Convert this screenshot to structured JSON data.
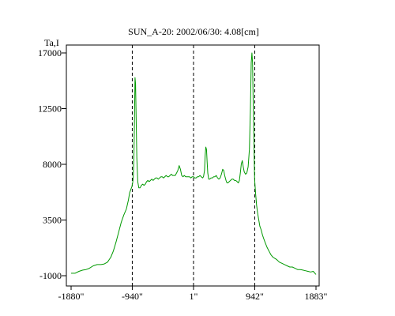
{
  "chart_data": {
    "type": "line",
    "title": "SUN_A-20: 2002/06/30: 4.08[cm]",
    "ylabel": "Ta,I",
    "xlabel": "",
    "xlim": [
      -1880,
      1883
    ],
    "ylim": [
      -1000,
      17000
    ],
    "grid": false,
    "x_ticks": [
      {
        "value": -1880,
        "label": "-1880\""
      },
      {
        "value": -940,
        "label": "-940\""
      },
      {
        "value": 1,
        "label": "1\""
      },
      {
        "value": 942,
        "label": "942\""
      },
      {
        "value": 1883,
        "label": "1883\""
      }
    ],
    "y_ticks": [
      {
        "value": 17000,
        "label": "17000"
      },
      {
        "value": 12500,
        "label": "12500"
      },
      {
        "value": 8000,
        "label": "8000"
      },
      {
        "value": 3500,
        "label": "3500"
      },
      {
        "value": -1000,
        "label": "-1000"
      }
    ],
    "reference_lines_x": [
      -940,
      1,
      942
    ],
    "series": [
      {
        "color": "#009900",
        "points": [
          [
            -1880,
            -800
          ],
          [
            -1820,
            -800
          ],
          [
            -1760,
            -650
          ],
          [
            -1700,
            -550
          ],
          [
            -1650,
            -500
          ],
          [
            -1600,
            -400
          ],
          [
            -1540,
            -200
          ],
          [
            -1480,
            -100
          ],
          [
            -1420,
            -100
          ],
          [
            -1370,
            -50
          ],
          [
            -1320,
            100
          ],
          [
            -1270,
            500
          ],
          [
            -1230,
            1000
          ],
          [
            -1190,
            1700
          ],
          [
            -1150,
            2500
          ],
          [
            -1110,
            3300
          ],
          [
            -1070,
            3900
          ],
          [
            -1030,
            4400
          ],
          [
            -1000,
            5100
          ],
          [
            -980,
            5700
          ],
          [
            -960,
            6000
          ],
          [
            -945,
            6200
          ],
          [
            -935,
            6500
          ],
          [
            -925,
            6900
          ],
          [
            -915,
            8500
          ],
          [
            -905,
            12000
          ],
          [
            -898,
            15000
          ],
          [
            -890,
            14500
          ],
          [
            -880,
            11500
          ],
          [
            -870,
            8500
          ],
          [
            -855,
            6600
          ],
          [
            -840,
            6100
          ],
          [
            -820,
            6100
          ],
          [
            -800,
            6300
          ],
          [
            -780,
            6400
          ],
          [
            -760,
            6300
          ],
          [
            -740,
            6400
          ],
          [
            -720,
            6600
          ],
          [
            -700,
            6700
          ],
          [
            -680,
            6600
          ],
          [
            -660,
            6700
          ],
          [
            -640,
            6800
          ],
          [
            -620,
            6700
          ],
          [
            -600,
            6800
          ],
          [
            -580,
            6900
          ],
          [
            -560,
            6900
          ],
          [
            -540,
            6800
          ],
          [
            -520,
            6900
          ],
          [
            -500,
            7000
          ],
          [
            -480,
            7000
          ],
          [
            -460,
            6900
          ],
          [
            -440,
            7000
          ],
          [
            -420,
            7100
          ],
          [
            -400,
            7000
          ],
          [
            -380,
            7000
          ],
          [
            -360,
            7100
          ],
          [
            -340,
            7200
          ],
          [
            -320,
            7100
          ],
          [
            -300,
            7100
          ],
          [
            -280,
            7100
          ],
          [
            -260,
            7300
          ],
          [
            -240,
            7500
          ],
          [
            -220,
            7900
          ],
          [
            -200,
            7600
          ],
          [
            -180,
            7100
          ],
          [
            -160,
            7000
          ],
          [
            -140,
            7100
          ],
          [
            -120,
            7000
          ],
          [
            -100,
            7000
          ],
          [
            -80,
            7000
          ],
          [
            -60,
            7000
          ],
          [
            -40,
            6900
          ],
          [
            -20,
            7000
          ],
          [
            0,
            7000
          ],
          [
            20,
            6900
          ],
          [
            40,
            6900
          ],
          [
            60,
            7000
          ],
          [
            80,
            7000
          ],
          [
            100,
            7100
          ],
          [
            120,
            7000
          ],
          [
            140,
            6900
          ],
          [
            155,
            7000
          ],
          [
            170,
            7500
          ],
          [
            180,
            8700
          ],
          [
            190,
            9400
          ],
          [
            200,
            9200
          ],
          [
            210,
            8200
          ],
          [
            220,
            7300
          ],
          [
            235,
            6800
          ],
          [
            250,
            6800
          ],
          [
            270,
            6900
          ],
          [
            290,
            6900
          ],
          [
            310,
            7000
          ],
          [
            330,
            7000
          ],
          [
            350,
            7100
          ],
          [
            370,
            6900
          ],
          [
            390,
            6800
          ],
          [
            410,
            6900
          ],
          [
            430,
            7200
          ],
          [
            450,
            7600
          ],
          [
            465,
            7500
          ],
          [
            480,
            7100
          ],
          [
            500,
            6700
          ],
          [
            515,
            6500
          ],
          [
            530,
            6500
          ],
          [
            550,
            6600
          ],
          [
            570,
            6700
          ],
          [
            590,
            6800
          ],
          [
            610,
            6800
          ],
          [
            630,
            6700
          ],
          [
            650,
            6700
          ],
          [
            670,
            6600
          ],
          [
            690,
            6500
          ],
          [
            705,
            6700
          ],
          [
            720,
            7300
          ],
          [
            735,
            8000
          ],
          [
            750,
            8300
          ],
          [
            765,
            7800
          ],
          [
            780,
            7400
          ],
          [
            800,
            7200
          ],
          [
            820,
            7300
          ],
          [
            840,
            7800
          ],
          [
            860,
            9200
          ],
          [
            875,
            12500
          ],
          [
            888,
            16200
          ],
          [
            898,
            17000
          ],
          [
            908,
            16200
          ],
          [
            918,
            13000
          ],
          [
            930,
            9500
          ],
          [
            940,
            6800
          ],
          [
            955,
            5600
          ],
          [
            970,
            4700
          ],
          [
            985,
            4100
          ],
          [
            1000,
            3600
          ],
          [
            1020,
            3000
          ],
          [
            1040,
            2700
          ],
          [
            1060,
            2300
          ],
          [
            1080,
            2000
          ],
          [
            1100,
            1700
          ],
          [
            1130,
            1300
          ],
          [
            1160,
            1000
          ],
          [
            1190,
            700
          ],
          [
            1220,
            500
          ],
          [
            1250,
            400
          ],
          [
            1280,
            300
          ],
          [
            1320,
            100
          ],
          [
            1360,
            0
          ],
          [
            1400,
            -100
          ],
          [
            1440,
            -200
          ],
          [
            1480,
            -300
          ],
          [
            1520,
            -300
          ],
          [
            1560,
            -400
          ],
          [
            1600,
            -500
          ],
          [
            1640,
            -500
          ],
          [
            1680,
            -550
          ],
          [
            1720,
            -600
          ],
          [
            1760,
            -650
          ],
          [
            1800,
            -700
          ],
          [
            1840,
            -650
          ],
          [
            1883,
            -900
          ]
        ]
      }
    ]
  }
}
